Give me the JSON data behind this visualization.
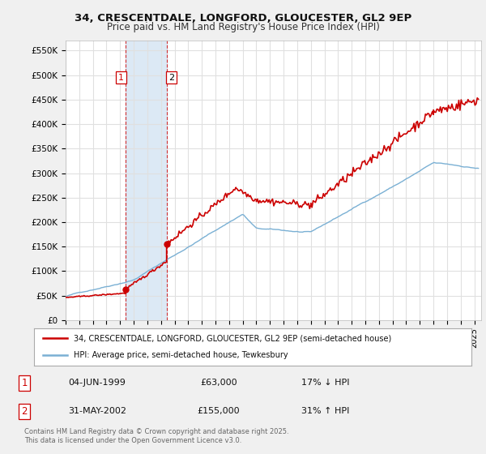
{
  "title_line1": "34, CRESCENTDALE, LONGFORD, GLOUCESTER, GL2 9EP",
  "title_line2": "Price paid vs. HM Land Registry's House Price Index (HPI)",
  "ylim": [
    0,
    570000
  ],
  "yticks": [
    0,
    50000,
    100000,
    150000,
    200000,
    250000,
    300000,
    350000,
    400000,
    450000,
    500000,
    550000
  ],
  "ytick_labels": [
    "£0",
    "£50K",
    "£100K",
    "£150K",
    "£200K",
    "£250K",
    "£300K",
    "£350K",
    "£400K",
    "£450K",
    "£500K",
    "£550K"
  ],
  "xmin": 1995,
  "xmax": 2025.5,
  "bg_color": "#f0f0f0",
  "plot_bg_color": "#ffffff",
  "grid_color": "#e0e0e0",
  "red_line_color": "#cc0000",
  "blue_line_color": "#7ab0d4",
  "purchase1_x": 1999.42,
  "purchase1_y": 63000,
  "purchase2_x": 2002.41,
  "purchase2_y": 155000,
  "vline1_x": 1999.42,
  "vline2_x": 2002.41,
  "shade_color": "#dce9f5",
  "legend_label1": "34, CRESCENTDALE, LONGFORD, GLOUCESTER, GL2 9EP (semi-detached house)",
  "legend_label2": "HPI: Average price, semi-detached house, Tewkesbury",
  "table_row1": [
    "1",
    "04-JUN-1999",
    "£63,000",
    "17% ↓ HPI"
  ],
  "table_row2": [
    "2",
    "31-MAY-2002",
    "£155,000",
    "31% ↑ HPI"
  ],
  "footer_text": "Contains HM Land Registry data © Crown copyright and database right 2025.\nThis data is licensed under the Open Government Licence v3.0."
}
